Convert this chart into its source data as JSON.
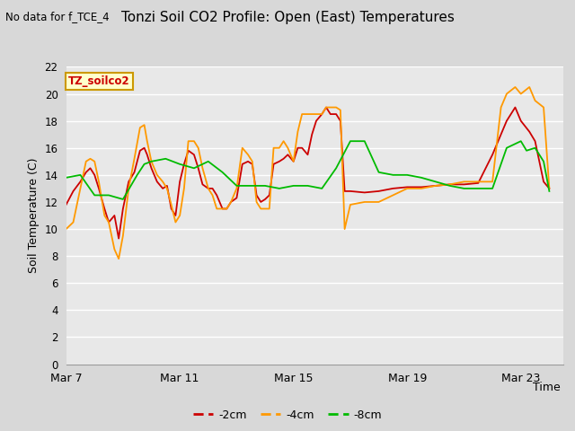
{
  "title": "Tonzi Soil CO2 Profile: Open (East) Temperatures",
  "no_data_label": "No data for f_TCE_4",
  "ylabel": "Soil Temperature (C)",
  "xlabel": "Time",
  "station_label": "TZ_soilco2",
  "ylim": [
    0,
    22
  ],
  "yticks": [
    0,
    2,
    4,
    6,
    8,
    10,
    12,
    14,
    16,
    18,
    20,
    22
  ],
  "xtick_positions": [
    0,
    4,
    8,
    12,
    16
  ],
  "xtick_labels": [
    "Mar 7",
    "Mar 11",
    "Mar 15",
    "Mar 19",
    "Mar 23"
  ],
  "xlim": [
    0,
    17.5
  ],
  "outer_bg": "#d8d8d8",
  "plot_bg": "#e8e8e8",
  "grid_color": "#ffffff",
  "line_neg2cm_color": "#cc0000",
  "line_neg4cm_color": "#ff9900",
  "line_neg8cm_color": "#00bb00",
  "legend_neg2cm": "-2cm",
  "legend_neg4cm": "-4cm",
  "legend_neg8cm": "-8cm",
  "x_neg2cm": [
    0.0,
    0.25,
    0.5,
    0.7,
    0.85,
    1.0,
    1.15,
    1.35,
    1.5,
    1.7,
    1.85,
    2.0,
    2.2,
    2.4,
    2.6,
    2.75,
    2.85,
    3.0,
    3.2,
    3.4,
    3.55,
    3.7,
    3.85,
    4.0,
    4.15,
    4.3,
    4.5,
    4.65,
    4.8,
    5.0,
    5.15,
    5.3,
    5.5,
    5.65,
    5.8,
    6.0,
    6.2,
    6.4,
    6.55,
    6.7,
    6.85,
    7.0,
    7.15,
    7.3,
    7.5,
    7.65,
    7.8,
    8.0,
    8.15,
    8.3,
    8.5,
    8.65,
    8.8,
    9.0,
    9.15,
    9.3,
    9.5,
    9.65,
    9.8,
    10.0,
    10.5,
    11.0,
    11.5,
    12.0,
    12.5,
    13.0,
    13.5,
    14.0,
    14.5,
    15.0,
    15.3,
    15.5,
    15.8,
    16.0,
    16.3,
    16.5,
    16.8,
    17.0
  ],
  "y_neg2cm": [
    11.8,
    12.8,
    13.5,
    14.2,
    14.5,
    14.0,
    13.0,
    11.5,
    10.5,
    11.0,
    9.3,
    11.5,
    13.5,
    14.2,
    15.8,
    16.0,
    15.5,
    14.5,
    13.5,
    13.0,
    13.2,
    11.5,
    11.0,
    13.5,
    14.8,
    15.8,
    15.5,
    14.5,
    13.3,
    13.0,
    13.0,
    12.5,
    11.5,
    11.5,
    12.0,
    12.3,
    14.8,
    15.0,
    14.8,
    12.5,
    12.0,
    12.2,
    12.5,
    14.8,
    15.0,
    15.2,
    15.5,
    15.0,
    16.0,
    16.0,
    15.5,
    17.0,
    18.0,
    18.5,
    19.0,
    18.5,
    18.5,
    18.0,
    12.8,
    12.8,
    12.7,
    12.8,
    13.0,
    13.1,
    13.1,
    13.2,
    13.3,
    13.3,
    13.4,
    15.5,
    17.0,
    18.0,
    19.0,
    18.0,
    17.2,
    16.5,
    13.5,
    13.0
  ],
  "x_neg4cm": [
    0.0,
    0.25,
    0.5,
    0.7,
    0.85,
    1.0,
    1.15,
    1.35,
    1.5,
    1.7,
    1.85,
    2.0,
    2.2,
    2.4,
    2.6,
    2.75,
    2.85,
    3.0,
    3.2,
    3.4,
    3.55,
    3.7,
    3.85,
    4.0,
    4.15,
    4.3,
    4.5,
    4.65,
    4.8,
    5.0,
    5.15,
    5.3,
    5.5,
    5.65,
    5.8,
    6.0,
    6.2,
    6.4,
    6.55,
    6.7,
    6.85,
    7.0,
    7.15,
    7.3,
    7.5,
    7.65,
    7.8,
    8.0,
    8.15,
    8.3,
    8.5,
    8.65,
    8.8,
    9.0,
    9.15,
    9.3,
    9.5,
    9.65,
    9.8,
    10.0,
    10.5,
    11.0,
    11.5,
    12.0,
    12.5,
    13.0,
    13.5,
    14.0,
    14.5,
    15.0,
    15.3,
    15.5,
    15.8,
    16.0,
    16.3,
    16.5,
    16.8,
    17.0
  ],
  "y_neg4cm": [
    10.0,
    10.5,
    13.0,
    15.0,
    15.2,
    15.0,
    13.5,
    11.0,
    10.5,
    8.5,
    7.8,
    9.5,
    13.0,
    15.2,
    17.5,
    17.7,
    16.5,
    15.0,
    14.0,
    13.5,
    13.0,
    11.8,
    10.5,
    11.0,
    13.0,
    16.5,
    16.5,
    16.0,
    14.5,
    13.0,
    12.5,
    11.5,
    11.5,
    11.5,
    12.0,
    13.0,
    16.0,
    15.5,
    15.0,
    12.0,
    11.5,
    11.5,
    11.5,
    16.0,
    16.0,
    16.5,
    16.0,
    15.0,
    17.2,
    18.5,
    18.5,
    18.5,
    18.5,
    18.5,
    19.0,
    19.0,
    19.0,
    18.8,
    10.0,
    11.8,
    12.0,
    12.0,
    12.5,
    13.0,
    13.0,
    13.2,
    13.3,
    13.5,
    13.5,
    13.5,
    19.0,
    20.0,
    20.5,
    20.0,
    20.5,
    19.5,
    19.0,
    13.0
  ],
  "x_neg8cm": [
    0.0,
    0.5,
    1.0,
    1.5,
    2.0,
    2.5,
    2.75,
    3.0,
    3.5,
    4.0,
    4.5,
    5.0,
    5.5,
    6.0,
    6.5,
    7.0,
    7.5,
    8.0,
    8.5,
    9.0,
    9.5,
    10.0,
    10.5,
    11.0,
    11.5,
    12.0,
    12.5,
    13.0,
    13.5,
    14.0,
    14.5,
    15.0,
    15.5,
    16.0,
    16.2,
    16.5,
    16.8,
    17.0
  ],
  "y_neg8cm": [
    13.8,
    14.0,
    12.5,
    12.5,
    12.2,
    14.0,
    14.8,
    15.0,
    15.2,
    14.8,
    14.5,
    15.0,
    14.2,
    13.2,
    13.2,
    13.2,
    13.0,
    13.2,
    13.2,
    13.0,
    14.5,
    16.5,
    16.5,
    14.2,
    14.0,
    14.0,
    13.8,
    13.5,
    13.2,
    13.0,
    13.0,
    13.0,
    16.0,
    16.5,
    15.8,
    16.0,
    15.0,
    12.8
  ]
}
